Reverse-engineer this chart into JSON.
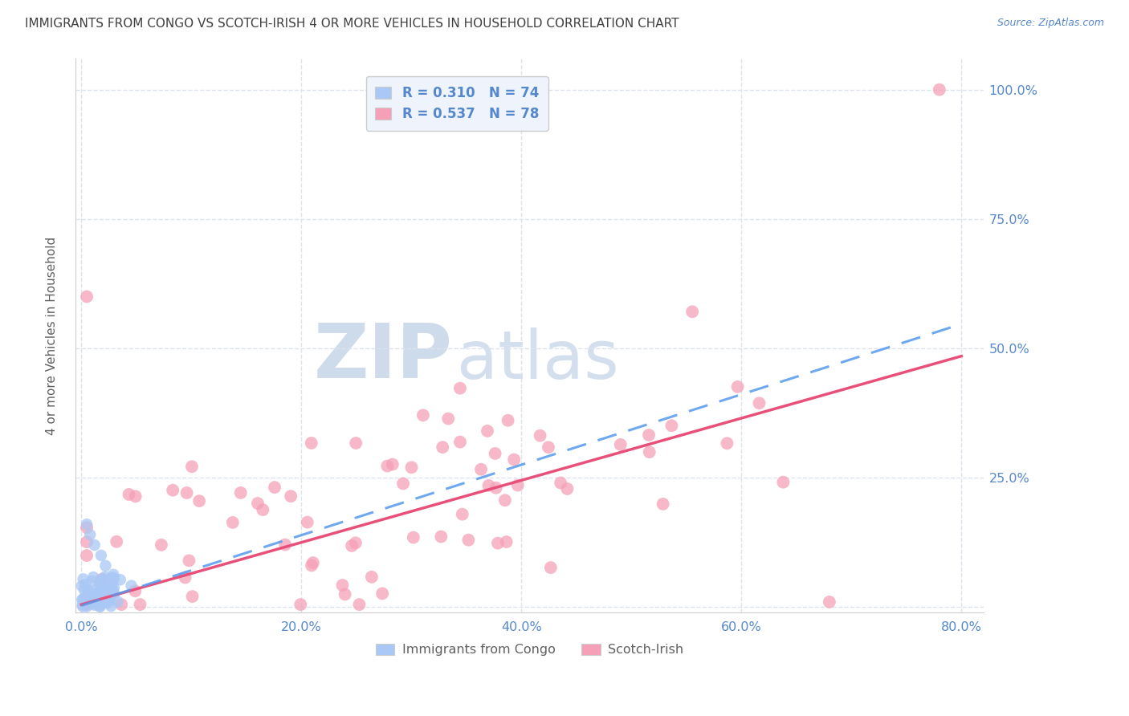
{
  "title": "IMMIGRANTS FROM CONGO VS SCOTCH-IRISH 4 OR MORE VEHICLES IN HOUSEHOLD CORRELATION CHART",
  "source": "Source: ZipAtlas.com",
  "ylabel": "4 or more Vehicles in Household",
  "xlim": [
    -0.005,
    0.82
  ],
  "ylim": [
    -0.01,
    1.06
  ],
  "ytick_values": [
    0.0,
    0.25,
    0.5,
    0.75,
    1.0
  ],
  "xtick_labels": [
    "0.0%",
    "20.0%",
    "40.0%",
    "60.0%",
    "80.0%"
  ],
  "xtick_values": [
    0.0,
    0.2,
    0.4,
    0.6,
    0.8
  ],
  "right_ytick_labels": [
    "100.0%",
    "75.0%",
    "50.0%",
    "25.0%"
  ],
  "right_ytick_values": [
    1.0,
    0.75,
    0.5,
    0.25
  ],
  "congo_R": 0.31,
  "congo_N": 74,
  "scotch_R": 0.537,
  "scotch_N": 78,
  "congo_color": "#aac8f5",
  "scotch_color": "#f5a0b8",
  "congo_line_color": "#5599ee",
  "scotch_line_color": "#e8507a",
  "congo_line_slope": 0.68,
  "congo_line_intercept": 0.003,
  "scotch_line_slope": 0.6,
  "scotch_line_intercept": 0.005,
  "watermark_zip": "ZIP",
  "watermark_atlas": "atlas",
  "watermark_color_zip": "#c5d5e8",
  "watermark_color_atlas": "#c5d5e8",
  "legend_box_color": "#eef3fc",
  "legend_border_color": "#cccccc",
  "title_color": "#404040",
  "axis_label_color": "#606060",
  "tick_color": "#5588cc",
  "grid_color": "#dde3ed",
  "background_color": "#ffffff"
}
